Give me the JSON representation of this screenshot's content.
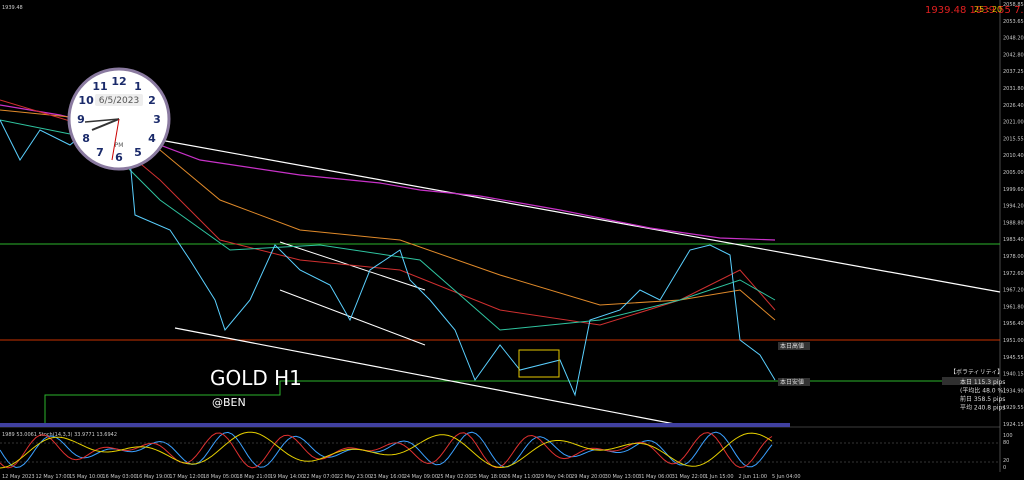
{
  "header": {
    "symbol_price": "1939.48",
    "quote": "1939.48  1939.55  7.0",
    "timer": "25 : 20"
  },
  "clock": {
    "date": "6/5/2023",
    "period": "PM",
    "numerals": [
      "12",
      "1",
      "2",
      "3",
      "4",
      "5",
      "6",
      "7",
      "8",
      "9",
      "10",
      "11"
    ]
  },
  "watermark": {
    "title": "GOLD H1",
    "author": "@BEN"
  },
  "price_axis": [
    "2058.85",
    "2053.65",
    "2048.20",
    "2042.80",
    "2037.25",
    "2031.80",
    "2026.40",
    "2021.00",
    "2015.55",
    "2010.40",
    "2005.00",
    "1999.60",
    "1994.20",
    "1988.80",
    "1983.40",
    "1978.00",
    "1972.60",
    "1967.20",
    "1961.80",
    "1956.40",
    "1951.00",
    "1945.55",
    "1940.15",
    "1934.90",
    "1929.55",
    "1924.15"
  ],
  "level_labels": {
    "high": "本日高値",
    "low": "本日安値"
  },
  "volatility": {
    "title": "【ボラティリティ】",
    "rows": [
      "本日  115.3 pips",
      "(平均比  48.0 %)",
      "前日  358.5 pips",
      "平均  240.8 pips"
    ]
  },
  "indicator": {
    "label": "1989 53.0061  Stoch(14,3,3) 33.9771 13.6942",
    "axis": [
      "100",
      "80",
      "20",
      "0"
    ]
  },
  "time_axis": [
    "12 May 2023",
    "12 May 17:00",
    "15 May 10:00",
    "16 May 03:00",
    "16 May 19:00",
    "17 May 12:00",
    "18 May 05:00",
    "18 May 21:00",
    "19 May 14:00",
    "22 May 07:00",
    "22 May 23:00",
    "23 May 16:00",
    "24 May 09:00",
    "25 May 02:00",
    "25 May 18:00",
    "26 May 11:00",
    "29 May 04:00",
    "29 May 20:00",
    "30 May 13:00",
    "31 May 06:00",
    "31 May 22:00",
    "1 Jun 15:00",
    "2 Jun 11:00",
    "5 Jun 04:00"
  ]
}
